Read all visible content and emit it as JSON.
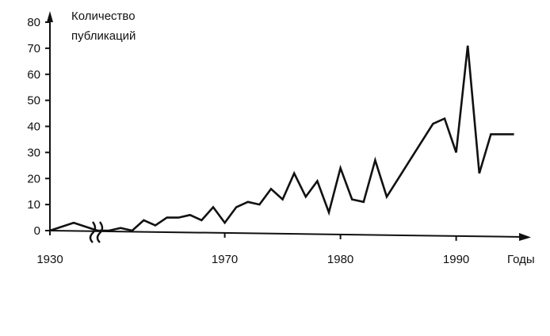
{
  "chart_data": {
    "type": "line",
    "title": "",
    "ylabel_lines": [
      "Количество",
      "публикаций"
    ],
    "xlabel": "Годы",
    "y_ticks": [
      0,
      10,
      20,
      30,
      40,
      50,
      60,
      70,
      80
    ],
    "ylim": [
      0,
      80
    ],
    "x_tick_labels": [
      "1930",
      "1970",
      "1980",
      "1990"
    ],
    "axis_break": "between 1930 and 1960",
    "grid": false,
    "legend": "none",
    "series": [
      {
        "x": [
          1930,
          1932,
          1934,
          1959,
          1960,
          1961,
          1962,
          1963,
          1964,
          1965,
          1966,
          1967,
          1968,
          1969,
          1970,
          1971,
          1972,
          1973,
          1974,
          1975,
          1976,
          1977,
          1978,
          1979,
          1980,
          1981,
          1982,
          1983,
          1984,
          1985,
          1986,
          1987,
          1988,
          1989,
          1990,
          1991,
          1992,
          1993,
          1994,
          1995
        ],
        "values": [
          0,
          3,
          0,
          0,
          0,
          1,
          0,
          4,
          2,
          5,
          5,
          6,
          4,
          9,
          3,
          9,
          11,
          10,
          16,
          12,
          22,
          13,
          19,
          7,
          24,
          12,
          11,
          27,
          13,
          20,
          27,
          34,
          41,
          43,
          30,
          71,
          22,
          37,
          37,
          37
        ]
      }
    ],
    "color": "#111111"
  }
}
